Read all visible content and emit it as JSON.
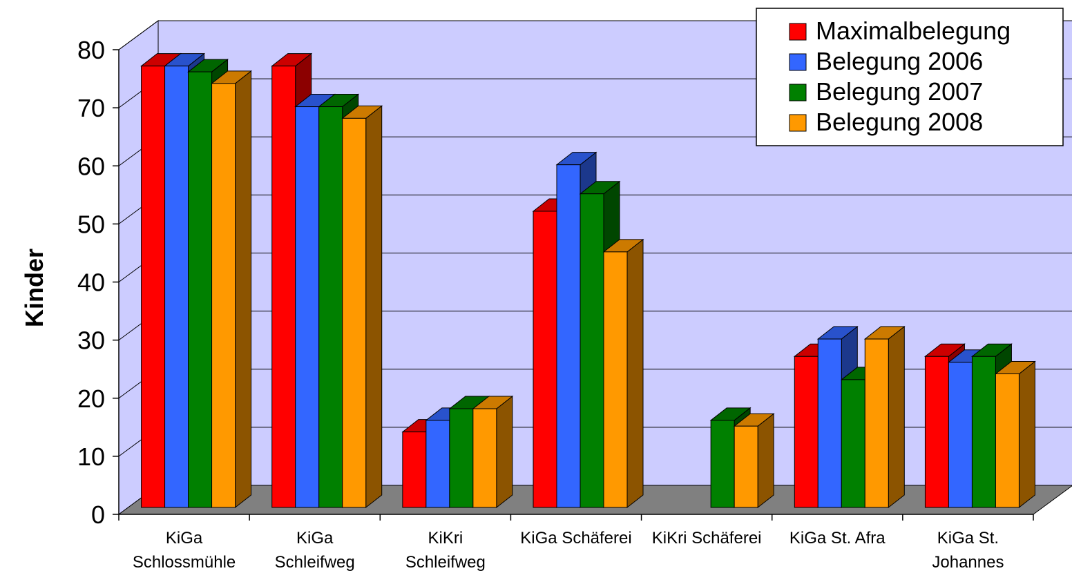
{
  "chart_data": {
    "type": "bar",
    "style": "3d-clustered",
    "title": "",
    "xlabel": "",
    "ylabel": "Kinder",
    "ylim": [
      0,
      80
    ],
    "yticks": [
      "0",
      "10",
      "20",
      "30",
      "40",
      "50",
      "60",
      "70",
      "80"
    ],
    "grid": true,
    "legend_position": "top-right",
    "categories": [
      [
        "KiGa",
        "Schlossmühle"
      ],
      [
        "KiGa",
        "Schleifweg"
      ],
      [
        "KiKri",
        "Schleifweg"
      ],
      [
        "KiGa Schäferei"
      ],
      [
        "KiKri Schäferei"
      ],
      [
        "KiGa St. Afra"
      ],
      [
        "KiGa St.",
        "Johannes"
      ]
    ],
    "series": [
      {
        "name": "Maximalbelegung",
        "color": "#ff0000",
        "values": [
          76,
          76,
          13,
          51,
          null,
          26,
          26
        ]
      },
      {
        "name": "Belegung 2006",
        "color": "#3366ff",
        "values": [
          76,
          69,
          15,
          59,
          null,
          29,
          25
        ]
      },
      {
        "name": "Belegung 2007",
        "color": "#008000",
        "values": [
          75,
          69,
          17,
          54,
          15,
          22,
          26
        ]
      },
      {
        "name": "Belegung 2008",
        "color": "#ff9900",
        "values": [
          73,
          67,
          17,
          44,
          14,
          29,
          23
        ]
      }
    ],
    "colors": {
      "wall": "#ccccff",
      "floor": "#808080",
      "gridline": "#000000"
    }
  }
}
